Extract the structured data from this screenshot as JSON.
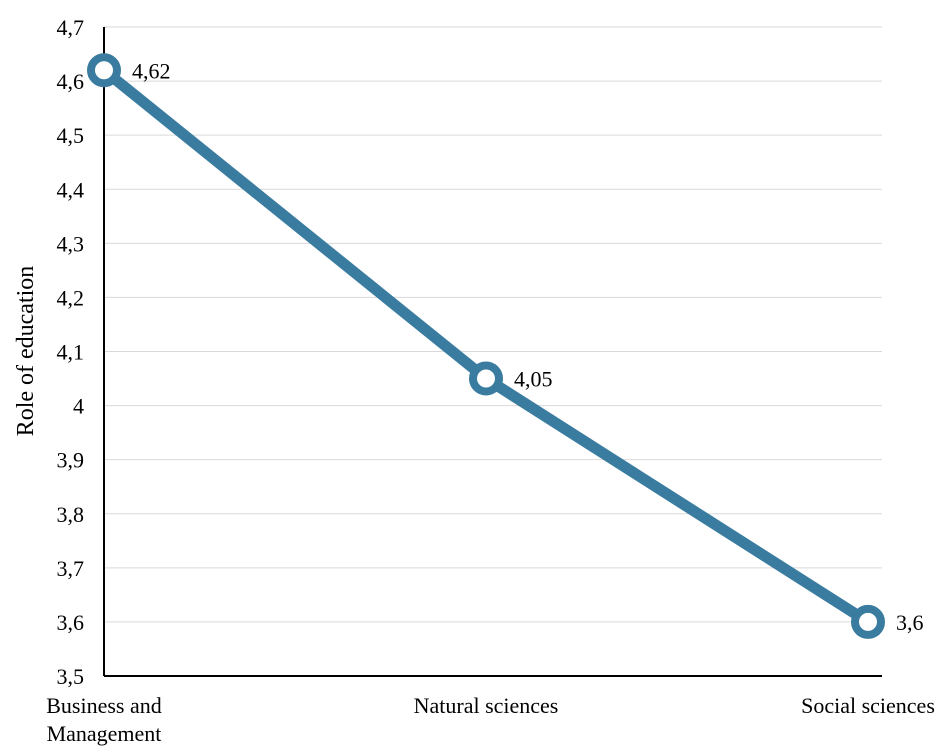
{
  "chart_data": {
    "type": "line",
    "title": "",
    "xlabel": "",
    "ylabel": "Role of education",
    "categories": [
      "Business and Management",
      "Natural sciences",
      "Social sciences"
    ],
    "series": [
      {
        "values": [
          4.62,
          4.05,
          3.6
        ],
        "data_labels": [
          "4,62",
          "4,05",
          "3,6"
        ]
      }
    ],
    "ylim": [
      3.5,
      4.7
    ],
    "yticks": [
      3.5,
      3.6,
      3.7,
      3.8,
      3.9,
      4.0,
      4.1,
      4.2,
      4.3,
      4.4,
      4.5,
      4.6,
      4.7
    ],
    "ytick_labels": [
      "3,5",
      "3,6",
      "3,7",
      "3,8",
      "3,9",
      "4",
      "4,1",
      "4,2",
      "4,3",
      "4,4",
      "4,5",
      "4,6",
      "4,7"
    ],
    "grid": true,
    "legend": "none",
    "colors": {
      "line": "#3a7ca0",
      "marker_fill": "#ffffff",
      "grid": "#d9d9d9",
      "axis": "#000000"
    }
  }
}
